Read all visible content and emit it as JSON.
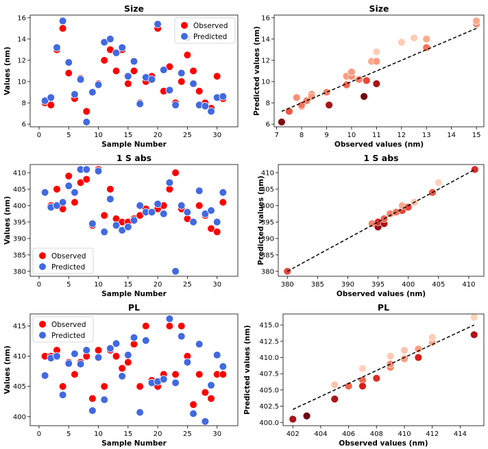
{
  "figure": {
    "legend": {
      "observed": "Observed",
      "predicted": "Predicted"
    },
    "colors": {
      "observed": "#ff0000",
      "predicted": "#4169e1",
      "fit": "#000000"
    }
  },
  "chart_data": [
    {
      "type": "scatter",
      "title": "Size",
      "xlabel": "Sample Number",
      "ylabel": "Values (nm)",
      "xlim": [
        -1.5,
        33.5
      ],
      "ylim": [
        5.75,
        16.25
      ],
      "xticks": [
        0,
        5,
        10,
        15,
        20,
        25,
        30
      ],
      "yticks": [
        6,
        8,
        10,
        12,
        14,
        16
      ],
      "legend_position": "top-right",
      "series": [
        {
          "name": "Observed",
          "x": [
            1,
            2,
            3,
            4,
            5,
            6,
            7,
            8,
            9,
            10,
            11,
            12,
            13,
            14,
            15,
            16,
            17,
            18,
            19,
            20,
            21,
            22,
            23,
            24,
            25,
            26,
            27,
            28,
            29,
            30,
            31
          ],
          "y": [
            8,
            7.8,
            13,
            15,
            10.8,
            8.4,
            10.3,
            7.2,
            9,
            9.8,
            12,
            13,
            11,
            13,
            9.8,
            11,
            8,
            10,
            10.5,
            15,
            9.1,
            11.4,
            8,
            10,
            12.5,
            11,
            9.1,
            8,
            7.5,
            10.5,
            8.4
          ]
        },
        {
          "name": "Predicted",
          "x": [
            1,
            2,
            3,
            4,
            5,
            6,
            7,
            8,
            9,
            10,
            11,
            12,
            13,
            14,
            15,
            16,
            17,
            18,
            19,
            20,
            21,
            22,
            23,
            24,
            25,
            26,
            27,
            28,
            29,
            30,
            31
          ],
          "y": [
            8.2,
            8.5,
            13.2,
            15.7,
            11.8,
            8.8,
            10.2,
            6.2,
            9,
            9.7,
            13.7,
            14,
            12.7,
            13.2,
            10.5,
            11.9,
            7.9,
            10.4,
            10.2,
            15.4,
            11.1,
            9.2,
            7.8,
            10.8,
            14.1,
            9.8,
            7.8,
            7.7,
            7.2,
            8.5,
            8.6
          ]
        }
      ]
    },
    {
      "type": "scatter",
      "title": "Size",
      "xlabel": "Observed values (nm)",
      "ylabel": "Predicted values (nm)",
      "xlim": [
        6.9,
        15.3
      ],
      "ylim": [
        5.75,
        16.25
      ],
      "xticks": [
        7,
        8,
        9,
        10,
        11,
        12,
        13,
        14,
        15
      ],
      "yticks": [
        6,
        8,
        10,
        12,
        14,
        16
      ],
      "fit_line": [
        [
          7.2,
          7.2
        ],
        [
          15,
          15
        ]
      ],
      "points": [
        {
          "x": 7.2,
          "y": 6.2,
          "shade": 0.95
        },
        {
          "x": 7.5,
          "y": 7.2,
          "shade": 0.55
        },
        {
          "x": 7.8,
          "y": 8.5,
          "shade": 0.35
        },
        {
          "x": 8,
          "y": 7.7,
          "shade": 0.5
        },
        {
          "x": 8,
          "y": 7.8,
          "shade": 0.45
        },
        {
          "x": 8.2,
          "y": 8.2,
          "shade": 0.4
        },
        {
          "x": 8.4,
          "y": 8.8,
          "shade": 0.35
        },
        {
          "x": 8.4,
          "y": 8.6,
          "shade": 0.3
        },
        {
          "x": 9,
          "y": 9,
          "shade": 0.4
        },
        {
          "x": 9.1,
          "y": 7.8,
          "shade": 0.85
        },
        {
          "x": 9.8,
          "y": 9.7,
          "shade": 0.5
        },
        {
          "x": 9.8,
          "y": 10.5,
          "shade": 0.3
        },
        {
          "x": 10,
          "y": 10.5,
          "shade": 0.35
        },
        {
          "x": 10,
          "y": 10.9,
          "shade": 0.3
        },
        {
          "x": 10.3,
          "y": 10.2,
          "shade": 0.4
        },
        {
          "x": 10.5,
          "y": 8.6,
          "shade": 0.98
        },
        {
          "x": 10.6,
          "y": 10.1,
          "shade": 0.6
        },
        {
          "x": 10.8,
          "y": 11.9,
          "shade": 0.25
        },
        {
          "x": 11,
          "y": 9.8,
          "shade": 0.85
        },
        {
          "x": 11,
          "y": 11.9,
          "shade": 0.3
        },
        {
          "x": 11,
          "y": 12.8,
          "shade": 0.12
        },
        {
          "x": 12,
          "y": 13.7,
          "shade": 0.12
        },
        {
          "x": 12.5,
          "y": 14.1,
          "shade": 0.12
        },
        {
          "x": 13,
          "y": 13.2,
          "shade": 0.45
        },
        {
          "x": 13,
          "y": 14,
          "shade": 0.25
        },
        {
          "x": 15,
          "y": 15.4,
          "shade": 0.35
        },
        {
          "x": 15,
          "y": 15.7,
          "shade": 0.25
        }
      ]
    },
    {
      "type": "scatter",
      "title": "1 S abs",
      "xlabel": "Sample Number",
      "ylabel": "Values (nm)",
      "xlim": [
        -1.5,
        33.5
      ],
      "ylim": [
        378.5,
        412.5
      ],
      "xticks": [
        0,
        5,
        10,
        15,
        20,
        25,
        30
      ],
      "yticks": [
        380,
        385,
        390,
        395,
        400,
        405,
        410
      ],
      "legend_position": "bottom-left",
      "series": [
        {
          "name": "Observed",
          "x": [
            1,
            2,
            3,
            4,
            5,
            6,
            7,
            8,
            9,
            10,
            11,
            12,
            13,
            14,
            15,
            16,
            17,
            18,
            19,
            20,
            21,
            22,
            23,
            24,
            25,
            26,
            27,
            28,
            29,
            30,
            31
          ],
          "y": [
            404,
            400,
            405,
            399,
            409,
            401,
            407,
            408,
            394,
            411,
            397,
            405,
            396,
            395,
            395,
            396,
            397,
            399,
            398,
            399,
            400,
            405,
            410,
            399,
            396,
            395,
            400,
            397,
            393,
            392,
            401
          ]
        },
        {
          "name": "Predicted",
          "x": [
            1,
            2,
            3,
            4,
            5,
            6,
            7,
            8,
            9,
            10,
            11,
            12,
            13,
            14,
            15,
            16,
            17,
            18,
            19,
            20,
            21,
            22,
            23,
            24,
            25,
            26,
            27,
            28,
            29,
            30,
            31
          ],
          "y": [
            404,
            399.5,
            400,
            401,
            406,
            404,
            411,
            411,
            394.5,
            410.5,
            392,
            402,
            394,
            392.5,
            393.5,
            395.5,
            400,
            398,
            398,
            400.5,
            397.5,
            407,
            380,
            400,
            398,
            395,
            404.5,
            397.5,
            398.5,
            395,
            404
          ]
        }
      ]
    },
    {
      "type": "scatter",
      "title": "1 S abs",
      "xlabel": "Observed values (nm)",
      "ylabel": "Predicted values (nm)",
      "xlim": [
        378.5,
        412.5
      ],
      "ylim": [
        378.5,
        412.5
      ],
      "xticks": [
        380,
        385,
        390,
        395,
        400,
        405,
        410
      ],
      "yticks": [
        380,
        385,
        390,
        395,
        400,
        405,
        410
      ],
      "fit_line": [
        [
          380,
          380
        ],
        [
          411,
          411
        ]
      ],
      "points": [
        {
          "x": 380,
          "y": 380,
          "shade": 0.6
        },
        {
          "x": 394,
          "y": 394.5,
          "shade": 0.4
        },
        {
          "x": 395,
          "y": 393.5,
          "shade": 0.9
        },
        {
          "x": 395,
          "y": 395,
          "shade": 0.7
        },
        {
          "x": 396,
          "y": 394.5,
          "shade": 0.85
        },
        {
          "x": 396,
          "y": 396,
          "shade": 0.5
        },
        {
          "x": 397,
          "y": 397.5,
          "shade": 0.4
        },
        {
          "x": 398,
          "y": 398,
          "shade": 0.45
        },
        {
          "x": 399,
          "y": 398.5,
          "shade": 0.6
        },
        {
          "x": 399,
          "y": 400,
          "shade": 0.25
        },
        {
          "x": 400,
          "y": 399.5,
          "shade": 0.6
        },
        {
          "x": 401,
          "y": 401,
          "shade": 0.15
        },
        {
          "x": 404,
          "y": 404,
          "shade": 0.55
        },
        {
          "x": 405,
          "y": 407,
          "shade": 0.1
        },
        {
          "x": 411,
          "y": 411,
          "shade": 0.7
        }
      ]
    },
    {
      "type": "scatter",
      "title": "PL",
      "xlabel": "Sample Number",
      "ylabel": "Values (nm)",
      "xlim": [
        -1.5,
        33.5
      ],
      "ylim": [
        398.5,
        417.0
      ],
      "xticks": [
        0,
        5,
        10,
        15,
        20,
        25,
        30
      ],
      "yticks": [
        400,
        405,
        410,
        415
      ],
      "legend_position": "top-left",
      "series": [
        {
          "name": "Observed",
          "x": [
            1,
            2,
            3,
            4,
            5,
            6,
            7,
            8,
            9,
            10,
            11,
            12,
            13,
            14,
            15,
            16,
            17,
            18,
            19,
            20,
            21,
            22,
            23,
            24,
            25,
            26,
            27,
            28,
            29,
            30,
            31
          ],
          "y": [
            410,
            410,
            411,
            405,
            409,
            407,
            409,
            410,
            403,
            411,
            405,
            411,
            410,
            408,
            409,
            412,
            405,
            415,
            406,
            405,
            407,
            415,
            407,
            415,
            410,
            402,
            407,
            404,
            403,
            407,
            407
          ]
        },
        {
          "name": "Predicted",
          "x": [
            1,
            2,
            3,
            4,
            5,
            6,
            7,
            8,
            9,
            10,
            11,
            12,
            13,
            14,
            15,
            16,
            17,
            18,
            19,
            20,
            21,
            22,
            23,
            24,
            25,
            26,
            27,
            28,
            29,
            30,
            31
          ],
          "y": [
            406.8,
            409.7,
            410,
            403.6,
            408.8,
            410.4,
            408.7,
            411,
            401,
            409.8,
            402.8,
            411.3,
            412.1,
            406.7,
            410.2,
            413.1,
            400.7,
            412.6,
            405.6,
            405.8,
            406.2,
            416.2,
            405.6,
            413.3,
            409,
            400.5,
            412,
            399.2,
            405.2,
            410.2,
            408.3
          ]
        }
      ]
    },
    {
      "type": "scatter",
      "title": "PL",
      "xlabel": "Observed values (nm)",
      "ylabel": "Predicted values (nm)",
      "xlim": [
        401.3,
        415.7
      ],
      "ylim": [
        399.5,
        416.7
      ],
      "xticks": [
        402,
        404,
        406,
        408,
        410,
        412,
        414
      ],
      "yticks": [
        400.0,
        402.5,
        405.0,
        407.5,
        410.0,
        412.5,
        415.0
      ],
      "yticks_labels": [
        "400.0",
        "402.5",
        "405.0",
        "407.5",
        "410.0",
        "412.5",
        "415.0"
      ],
      "fit_line": [
        [
          402,
          402
        ],
        [
          415,
          415
        ]
      ],
      "points": [
        {
          "x": 402,
          "y": 400.5,
          "shade": 0.85
        },
        {
          "x": 403,
          "y": 401,
          "shade": 1.0
        },
        {
          "x": 405,
          "y": 403.6,
          "shade": 0.85
        },
        {
          "x": 405,
          "y": 405.8,
          "shade": 0.15
        },
        {
          "x": 406,
          "y": 405.6,
          "shade": 0.5
        },
        {
          "x": 407,
          "y": 406.5,
          "shade": 0.5
        },
        {
          "x": 407,
          "y": 405.6,
          "shade": 0.75
        },
        {
          "x": 407,
          "y": 408.3,
          "shade": 0.1
        },
        {
          "x": 408,
          "y": 406.8,
          "shade": 0.7
        },
        {
          "x": 409,
          "y": 408.5,
          "shade": 0.4
        },
        {
          "x": 409,
          "y": 409,
          "shade": 0.35
        },
        {
          "x": 409,
          "y": 410.2,
          "shade": 0.12
        },
        {
          "x": 410,
          "y": 409.8,
          "shade": 0.3
        },
        {
          "x": 410,
          "y": 411.1,
          "shade": 0.15
        },
        {
          "x": 411,
          "y": 410,
          "shade": 0.75
        },
        {
          "x": 411,
          "y": 411.3,
          "shade": 0.3
        },
        {
          "x": 412,
          "y": 412.3,
          "shade": 0.25
        },
        {
          "x": 412,
          "y": 413.1,
          "shade": 0.12
        },
        {
          "x": 415,
          "y": 413.5,
          "shade": 0.85
        },
        {
          "x": 415,
          "y": 416.2,
          "shade": 0.1
        }
      ]
    }
  ]
}
